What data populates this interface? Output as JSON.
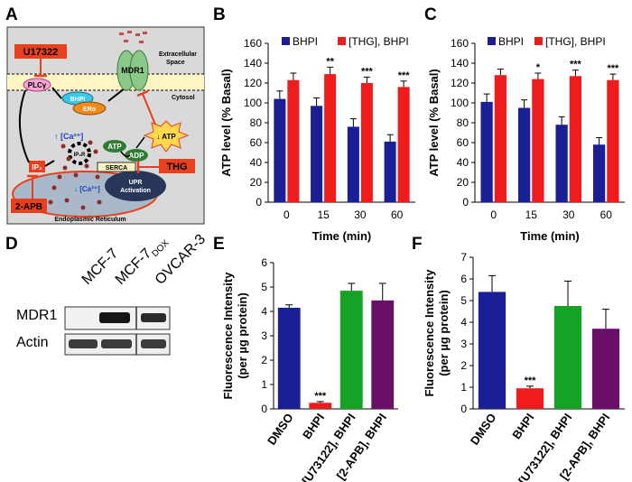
{
  "panel_labels": {
    "a": "A",
    "b": "B",
    "c": "C",
    "d": "D",
    "e": "E",
    "f": "F"
  },
  "colors": {
    "blue": "#1b1f96",
    "red": "#ee1c1c",
    "green": "#15a325",
    "purple": "#6a0f69",
    "diag_bg": "#d9d9d9",
    "inhib": "#e8401c"
  },
  "diagram": {
    "u17322": "U17322",
    "plcg": "PLCγ",
    "bhpi": "BHPI",
    "era": "ERα",
    "mdr1": "MDR1",
    "extracellular_1": "Extracellular",
    "extracellular_2": "Space",
    "cytosol": "Cytosol",
    "atp_down": "↓ ATP",
    "ca_up": "↑ [Ca²⁺]",
    "ca_down": "↓ [Ca²⁺]",
    "atp": "ATP",
    "adp": "ADP",
    "ip3": "IP₃",
    "ip3r": "IP₃R",
    "serca": "SERCA",
    "thg": "THG",
    "upr_1": "UPR",
    "upr_2": "Activation",
    "apb": "2-APB",
    "er": "Endoplasmic Reticulum"
  },
  "blot": {
    "samples": [
      "MCF-7",
      "MCF-7",
      "OVCAR-3"
    ],
    "dox_sub": "DOX",
    "rows": [
      "MDR1",
      "Actin"
    ]
  },
  "chart_data": [
    {
      "type": "bar",
      "id": "B",
      "series": [
        {
          "name": "BHPI",
          "color": "#1b1f96",
          "values": [
            104,
            97,
            76,
            61
          ],
          "errors": [
            8,
            8,
            8,
            7
          ]
        },
        {
          "name": "[THG], BHPI",
          "color": "#ee1c1c",
          "values": [
            123,
            129,
            120,
            116
          ],
          "errors": [
            7,
            7,
            6,
            6
          ]
        }
      ],
      "categories": [
        "0",
        "15",
        "30",
        "60"
      ],
      "significance": [
        "",
        "**",
        "***",
        "***"
      ],
      "xlabel": "Time (min)",
      "ylabel": "ATP level (% Basal)",
      "ylim": [
        0,
        160
      ],
      "yticks": [
        "0",
        "20",
        "40",
        "60",
        "80",
        "100",
        "120",
        "140",
        "160"
      ]
    },
    {
      "type": "bar",
      "id": "C",
      "series": [
        {
          "name": "BHPI",
          "color": "#1b1f96",
          "values": [
            101,
            95,
            78,
            58
          ],
          "errors": [
            8,
            8,
            8,
            7
          ]
        },
        {
          "name": "[THG], BHPI",
          "color": "#ee1c1c",
          "values": [
            128,
            124,
            127,
            123
          ],
          "errors": [
            6,
            6,
            6,
            6
          ]
        }
      ],
      "categories": [
        "0",
        "15",
        "30",
        "60"
      ],
      "significance": [
        "",
        "*",
        "***",
        "***"
      ],
      "xlabel": "Time (min)",
      "ylabel": "ATP level (% Basal)",
      "ylim": [
        0,
        160
      ],
      "yticks": [
        "0",
        "20",
        "40",
        "60",
        "80",
        "100",
        "120",
        "140",
        "160"
      ]
    },
    {
      "type": "bar",
      "id": "E",
      "categories": [
        "DMSO",
        "BHPI",
        "[U73122], BHPI",
        "[2-APB], BHPI"
      ],
      "values": [
        4.15,
        0.25,
        4.85,
        4.45
      ],
      "errors": [
        0.12,
        0.05,
        0.3,
        0.7
      ],
      "colors": [
        "#1b1f96",
        "#ee1c1c",
        "#15a325",
        "#6a0f69"
      ],
      "significance": [
        "",
        "***",
        "",
        ""
      ],
      "ylabel": "Fluorescence Intensity (per µg protein)",
      "ylabel_1": "Fluorescence Intensity",
      "ylabel_2": "(per µg protein)",
      "ylim": [
        0,
        6
      ],
      "yticks": [
        "0",
        "1",
        "2",
        "3",
        "4",
        "5",
        "6"
      ]
    },
    {
      "type": "bar",
      "id": "F",
      "categories": [
        "DMSO",
        "BHPI",
        "[U73122], BHPI",
        "[2-APB], BHPI"
      ],
      "values": [
        5.4,
        0.95,
        4.75,
        3.7
      ],
      "errors": [
        0.75,
        0.1,
        1.15,
        0.9
      ],
      "colors": [
        "#1b1f96",
        "#ee1c1c",
        "#15a325",
        "#6a0f69"
      ],
      "significance": [
        "",
        "***",
        "",
        ""
      ],
      "ylabel": "Fluorescence Intensity (per µg protein)",
      "ylabel_1": "Fluorescence Intensity",
      "ylabel_2": "(per µg protein)",
      "ylim": [
        0,
        7
      ],
      "yticks": [
        "0",
        "1",
        "2",
        "3",
        "4",
        "5",
        "6",
        "7"
      ]
    }
  ]
}
